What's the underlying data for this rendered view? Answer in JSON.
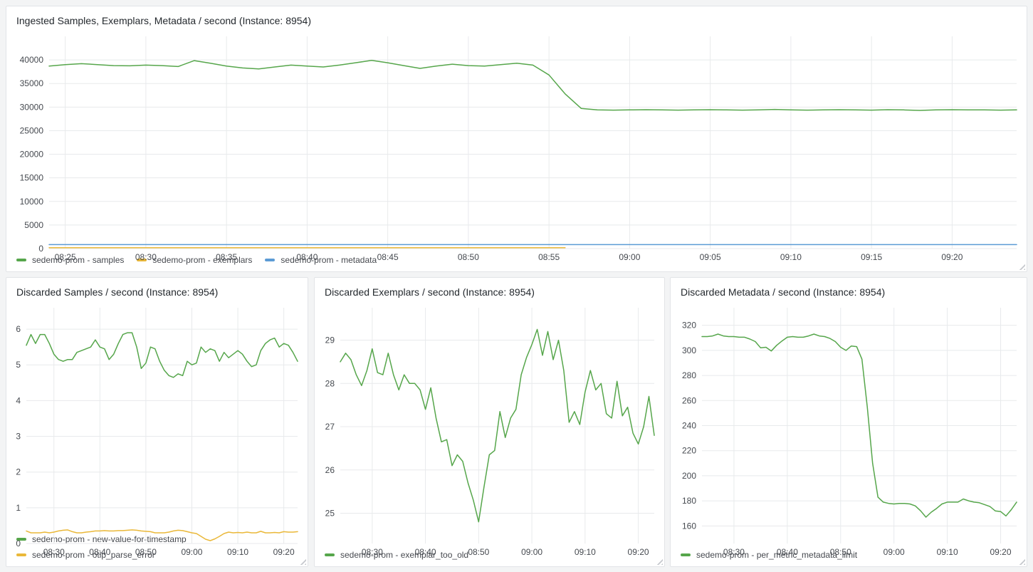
{
  "dashboard": {
    "background": "#f3f4f5",
    "panel_background": "#ffffff"
  },
  "colors": {
    "green": "#56A64B",
    "yellow": "#EAB839",
    "blue": "#5B9BD5"
  },
  "chart_data": [
    {
      "type": "line",
      "title": "Ingested Samples, Exemplars, Metadata / second (Instance: 8954)",
      "xlabel": "",
      "ylabel": "",
      "grid": true,
      "legend_position": "bottom",
      "x_start": "08:24",
      "x_end": "09:24",
      "x_range": [
        0,
        60
      ],
      "x_ticks": [
        {
          "m": 1,
          "label": "08:25"
        },
        {
          "m": 6,
          "label": "08:30"
        },
        {
          "m": 11,
          "label": "08:35"
        },
        {
          "m": 16,
          "label": "08:40"
        },
        {
          "m": 21,
          "label": "08:45"
        },
        {
          "m": 26,
          "label": "08:50"
        },
        {
          "m": 31,
          "label": "08:55"
        },
        {
          "m": 36,
          "label": "09:00"
        },
        {
          "m": 41,
          "label": "09:05"
        },
        {
          "m": 46,
          "label": "09:10"
        },
        {
          "m": 51,
          "label": "09:15"
        },
        {
          "m": 56,
          "label": "09:20"
        }
      ],
      "ylim": [
        0,
        45000
      ],
      "y_ticks": [
        0,
        5000,
        10000,
        15000,
        20000,
        25000,
        30000,
        35000,
        40000
      ],
      "series": [
        {
          "name": "sedemo-prom - samples",
          "color": "#56A64B",
          "values": [
            38700,
            39000,
            39200,
            39000,
            38800,
            38750,
            38900,
            38800,
            38600,
            39850,
            39300,
            38700,
            38300,
            38100,
            38500,
            38900,
            38700,
            38500,
            38900,
            39400,
            39900,
            39400,
            38800,
            38200,
            38700,
            39100,
            38800,
            38700,
            39000,
            39300,
            38900,
            36800,
            32800,
            29700,
            29400,
            29350,
            29400,
            29450,
            29400,
            29350,
            29400,
            29450,
            29400,
            29350,
            29400,
            29500,
            29400,
            29350,
            29400,
            29450,
            29400,
            29350,
            29450,
            29400,
            29300,
            29400,
            29450,
            29400,
            29400,
            29350,
            29400
          ]
        },
        {
          "name": "sedemo-prom - exemplars",
          "color": "#EAB839",
          "values": [
            200,
            200,
            200,
            200,
            200,
            200,
            200,
            200,
            200,
            200,
            200,
            200,
            200,
            200,
            200,
            200,
            200,
            200,
            200,
            200,
            200,
            200,
            200,
            200,
            200,
            200,
            200,
            200,
            200,
            200,
            200,
            200,
            200,
            null,
            null,
            null,
            null,
            null,
            null,
            null,
            null,
            null,
            null,
            null,
            null,
            null,
            null,
            null,
            null,
            null,
            null,
            null,
            null,
            null,
            null,
            null,
            null,
            null,
            null,
            null,
            null
          ]
        },
        {
          "name": "sedemo-prom - metadata",
          "color": "#5B9BD5",
          "values": [
            850,
            850,
            850,
            850,
            850,
            850,
            850,
            850,
            850,
            850,
            850,
            850,
            850,
            850,
            850,
            850,
            850,
            850,
            850,
            850,
            850,
            850,
            850,
            850,
            850,
            850,
            850,
            850,
            850,
            850,
            850,
            850,
            850,
            850,
            850,
            850,
            850,
            850,
            850,
            850,
            850,
            850,
            850,
            850,
            850,
            850,
            850,
            850,
            850,
            850,
            850,
            850,
            850,
            850,
            850,
            850,
            850,
            850,
            850,
            850,
            850
          ]
        }
      ]
    },
    {
      "type": "line",
      "title": "Discarded Samples / second (Instance: 8954)",
      "xlabel": "",
      "ylabel": "",
      "grid": true,
      "legend_position": "bottom",
      "x_start": "08:24",
      "x_end": "09:23",
      "x_range": [
        0,
        59
      ],
      "x_ticks": [
        {
          "m": 6,
          "label": "08:30"
        },
        {
          "m": 16,
          "label": "08:40"
        },
        {
          "m": 26,
          "label": "08:50"
        },
        {
          "m": 36,
          "label": "09:00"
        },
        {
          "m": 46,
          "label": "09:10"
        },
        {
          "m": 56,
          "label": "09:20"
        }
      ],
      "ylim": [
        0,
        6.6
      ],
      "y_ticks": [
        0,
        1,
        2,
        3,
        4,
        5,
        6
      ],
      "series": [
        {
          "name": "sedemo-prom - new-value-for-timestamp",
          "color": "#56A64B",
          "values": [
            5.55,
            5.85,
            5.6,
            5.85,
            5.85,
            5.6,
            5.3,
            5.15,
            5.1,
            5.15,
            5.15,
            5.35,
            5.4,
            5.45,
            5.5,
            5.7,
            5.5,
            5.45,
            5.15,
            5.3,
            5.6,
            5.85,
            5.9,
            5.9,
            5.5,
            4.9,
            5.05,
            5.5,
            5.45,
            5.1,
            4.85,
            4.7,
            4.65,
            4.75,
            4.7,
            5.1,
            5.0,
            5.05,
            5.5,
            5.35,
            5.45,
            5.4,
            5.1,
            5.35,
            5.2,
            5.3,
            5.4,
            5.3,
            5.1,
            4.95,
            5.0,
            5.4,
            5.6,
            5.7,
            5.75,
            5.5,
            5.6,
            5.55,
            5.35,
            5.1
          ]
        },
        {
          "name": "sedemo-prom - otlp_parse_error",
          "color": "#EAB839",
          "values": [
            0.35,
            0.3,
            0.3,
            0.3,
            0.32,
            0.3,
            0.32,
            0.35,
            0.37,
            0.38,
            0.33,
            0.3,
            0.3,
            0.32,
            0.33,
            0.35,
            0.35,
            0.36,
            0.35,
            0.35,
            0.36,
            0.36,
            0.37,
            0.38,
            0.37,
            0.35,
            0.34,
            0.33,
            0.3,
            0.3,
            0.3,
            0.32,
            0.35,
            0.37,
            0.36,
            0.33,
            0.3,
            0.28,
            0.2,
            0.12,
            0.08,
            0.13,
            0.2,
            0.28,
            0.32,
            0.3,
            0.31,
            0.3,
            0.32,
            0.3,
            0.3,
            0.34,
            0.3,
            0.3,
            0.31,
            0.3,
            0.33,
            0.32,
            0.32,
            0.33
          ]
        }
      ]
    },
    {
      "type": "line",
      "title": "Discarded Exemplars / second (Instance: 8954)",
      "xlabel": "",
      "ylabel": "",
      "grid": true,
      "legend_position": "bottom",
      "x_start": "08:24",
      "x_end": "09:23",
      "x_range": [
        0,
        59
      ],
      "x_ticks": [
        {
          "m": 6,
          "label": "08:30"
        },
        {
          "m": 16,
          "label": "08:40"
        },
        {
          "m": 26,
          "label": "08:50"
        },
        {
          "m": 36,
          "label": "09:00"
        },
        {
          "m": 46,
          "label": "09:10"
        },
        {
          "m": 56,
          "label": "09:20"
        }
      ],
      "ylim": [
        24.3,
        29.75
      ],
      "y_ticks": [
        25,
        26,
        27,
        28,
        29
      ],
      "series": [
        {
          "name": "sedemo-prom - exemplar_too_old",
          "color": "#56A64B",
          "values": [
            28.5,
            28.7,
            28.55,
            28.2,
            27.95,
            28.3,
            28.8,
            28.25,
            28.2,
            28.7,
            28.2,
            27.85,
            28.2,
            28.0,
            28.0,
            27.85,
            27.4,
            27.9,
            27.2,
            26.65,
            26.7,
            26.1,
            26.35,
            26.2,
            25.7,
            25.3,
            24.8,
            25.6,
            26.35,
            26.45,
            27.35,
            26.75,
            27.2,
            27.4,
            28.2,
            28.6,
            28.9,
            29.25,
            28.65,
            29.2,
            28.55,
            29.0,
            28.3,
            27.1,
            27.35,
            27.05,
            27.8,
            28.3,
            27.85,
            28.0,
            27.3,
            27.2,
            28.05,
            27.25,
            27.45,
            26.85,
            26.6,
            27.0,
            27.7,
            26.8
          ]
        }
      ]
    },
    {
      "type": "line",
      "title": "Discarded Metadata / second (Instance: 8954)",
      "xlabel": "",
      "ylabel": "",
      "grid": true,
      "legend_position": "bottom",
      "x_start": "08:24",
      "x_end": "09:23",
      "x_range": [
        0,
        59
      ],
      "x_ticks": [
        {
          "m": 6,
          "label": "08:30"
        },
        {
          "m": 16,
          "label": "08:40"
        },
        {
          "m": 26,
          "label": "08:50"
        },
        {
          "m": 36,
          "label": "09:00"
        },
        {
          "m": 46,
          "label": "09:10"
        },
        {
          "m": 56,
          "label": "09:20"
        }
      ],
      "ylim": [
        146,
        334
      ],
      "y_ticks": [
        160,
        180,
        200,
        220,
        240,
        260,
        280,
        300,
        320
      ],
      "series": [
        {
          "name": "sedemo-prom - per_metric_metadata_limit",
          "color": "#56A64B",
          "values": [
            311,
            311,
            311.5,
            313,
            311.5,
            311,
            311,
            310.5,
            310.5,
            309,
            307,
            302,
            302.5,
            299.5,
            304,
            307.5,
            310.5,
            311,
            310.5,
            310.5,
            311.5,
            313,
            311.5,
            311,
            309.5,
            307,
            302.5,
            300,
            303.5,
            303,
            293,
            255,
            210,
            183,
            179,
            178,
            177.5,
            178,
            178,
            177.5,
            176,
            172,
            167,
            171,
            174,
            177.5,
            179,
            179,
            179,
            181.5,
            180,
            179,
            178.5,
            177,
            175.5,
            172,
            171.5,
            168,
            173,
            179
          ]
        }
      ]
    }
  ]
}
